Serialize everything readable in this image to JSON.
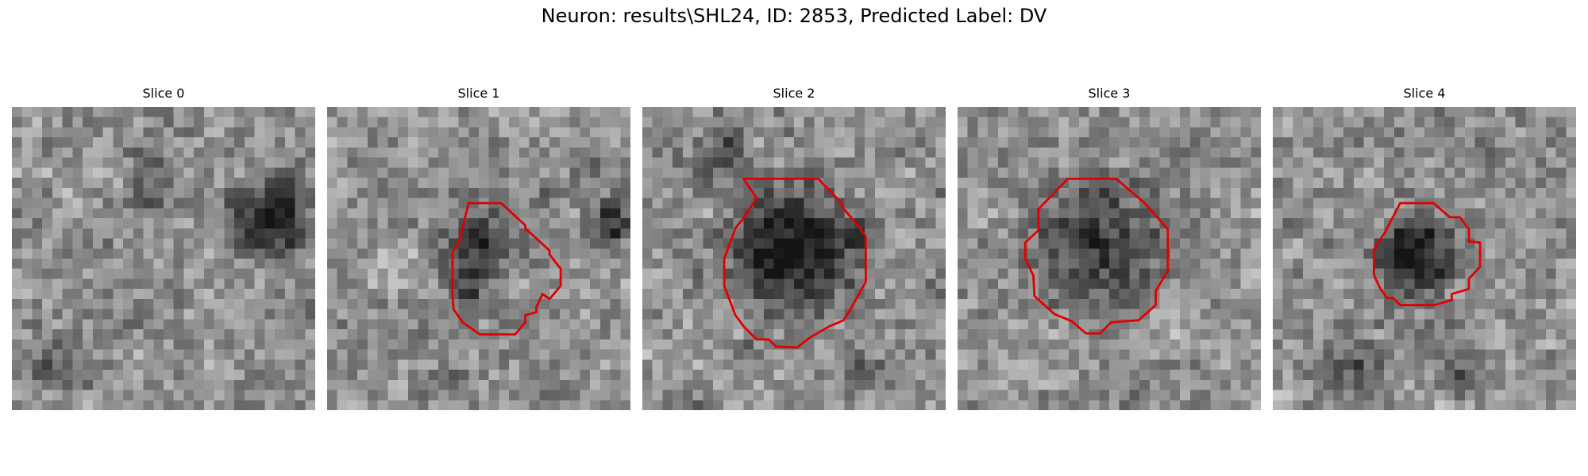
{
  "figure": {
    "title": "Neuron: results\\SHL24, ID: 2853, Predicted Label: DV"
  },
  "slices": [
    {
      "label": "Slice 0",
      "has_contour": false
    },
    {
      "label": "Slice 1",
      "has_contour": true
    },
    {
      "label": "Slice 2",
      "has_contour": true
    },
    {
      "label": "Slice 3",
      "has_contour": true
    },
    {
      "label": "Slice 4",
      "has_contour": true
    }
  ],
  "colors": {
    "contour": "#e00000",
    "background": "#ffffff"
  }
}
